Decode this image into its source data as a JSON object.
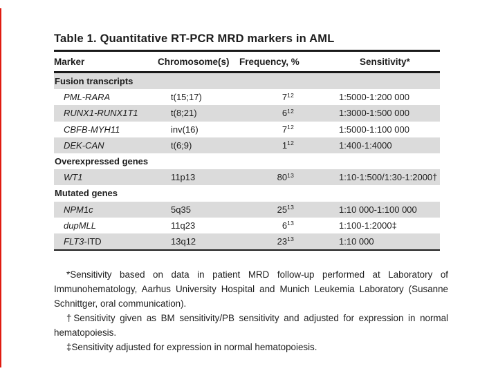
{
  "page": {
    "background": "#ffffff",
    "accent_red": "#e01b10",
    "text_color": "#1c1c1c",
    "rule_color": "#1a1a1a",
    "row_alt_color": "#dbdbdb"
  },
  "table": {
    "title": "Table 1. Quantitative RT-PCR MRD markers in AML",
    "columns": [
      "Marker",
      "Chromosome(s)",
      "Frequency, %",
      "Sensitivity*"
    ],
    "rows": [
      {
        "type": "section",
        "marker": "Fusion transcripts"
      },
      {
        "type": "data",
        "marker": "PML-RARA",
        "marker_suffix": "",
        "chromosome": "t(15;17)",
        "frequency": "7",
        "frequency_ref": "12",
        "sensitivity": "1:5000-1:200 000"
      },
      {
        "type": "data",
        "marker": "RUNX1-RUNX1T1",
        "marker_suffix": "",
        "chromosome": "t(8;21)",
        "frequency": "6",
        "frequency_ref": "12",
        "sensitivity": "1:3000-1:500 000"
      },
      {
        "type": "data",
        "marker": "CBFB-MYH11",
        "marker_suffix": "",
        "chromosome": "inv(16)",
        "frequency": "7",
        "frequency_ref": "12",
        "sensitivity": "1:5000-1:100 000"
      },
      {
        "type": "data",
        "marker": "DEK-CAN",
        "marker_suffix": "",
        "chromosome": "t(6;9)",
        "frequency": "1",
        "frequency_ref": "12",
        "sensitivity": "1:400-1:4000"
      },
      {
        "type": "section",
        "marker": "Overexpressed genes"
      },
      {
        "type": "data",
        "marker": "WT1",
        "marker_suffix": "",
        "chromosome": "11p13",
        "frequency": "80",
        "frequency_ref": "13",
        "sensitivity": "1:10-1:500/1:30-1:2000†"
      },
      {
        "type": "section",
        "marker": "Mutated genes"
      },
      {
        "type": "data",
        "marker": "NPM1c",
        "marker_suffix": "",
        "chromosome": "5q35",
        "frequency": "25",
        "frequency_ref": "13",
        "sensitivity": "1:10 000-1:100 000"
      },
      {
        "type": "data",
        "marker": "dupMLL",
        "marker_suffix": "",
        "chromosome": "11q23",
        "frequency": "6",
        "frequency_ref": "13",
        "sensitivity": "1:100-1:2000‡"
      },
      {
        "type": "data",
        "marker": "FLT3",
        "marker_suffix": "-ITD",
        "chromosome": "13q12",
        "frequency": "23",
        "frequency_ref": "13",
        "sensitivity": "1:10 000"
      }
    ]
  },
  "footnotes": [
    "*Sensitivity based on data in patient MRD follow-up performed at Laboratory of Immunohematology, Aarhus University Hospital and Munich Leukemia Laboratory (Susanne Schnittger, oral communication).",
    "†Sensitivity given as BM sensitivity/PB sensitivity and adjusted for expression in normal hematopoiesis.",
    "‡Sensitivity adjusted for expression in normal hematopoiesis."
  ]
}
